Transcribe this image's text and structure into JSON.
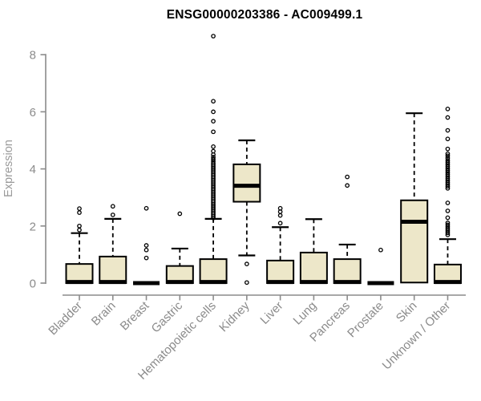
{
  "title": "ENSG00000203386 - AC009499.1",
  "chart_data": {
    "type": "boxplot",
    "title": "ENSG00000203386 - AC009499.1",
    "xlabel": "",
    "ylabel": "Expression",
    "ylim": [
      0,
      8.8
    ],
    "yticks": [
      0,
      2,
      4,
      6,
      8
    ],
    "grid": false,
    "legend": "none",
    "categories": [
      "Bladder",
      "Brain",
      "Breast",
      "Gastric",
      "Hematopoietic cells",
      "Kidney",
      "Liver",
      "Lung",
      "Pancreas",
      "Prostate",
      "Skin",
      "Unknown / Other"
    ],
    "series": [
      {
        "name": "Bladder",
        "whisker_low": 0,
        "q1": 0,
        "median": 0.04,
        "q3": 0.67,
        "whisker_high": 1.75,
        "outliers": [
          1.86,
          2.0,
          2.47,
          2.61
        ]
      },
      {
        "name": "Brain",
        "whisker_low": 0,
        "q1": 0,
        "median": 0.04,
        "q3": 0.93,
        "whisker_high": 2.25,
        "outliers": [
          2.39,
          2.69
        ]
      },
      {
        "name": "Breast",
        "whisker_low": 0,
        "q1": 0,
        "median": 0.02,
        "q3": 0.04,
        "whisker_high": 0.05,
        "outliers": [
          0.88,
          1.16,
          1.32,
          2.62
        ]
      },
      {
        "name": "Gastric",
        "whisker_low": 0,
        "q1": 0,
        "median": 0.04,
        "q3": 0.6,
        "whisker_high": 1.21,
        "outliers": [
          2.43
        ]
      },
      {
        "name": "Hematopoietic cells",
        "whisker_low": 0,
        "q1": 0,
        "median": 0.04,
        "q3": 0.84,
        "whisker_high": 2.25,
        "outliers": [
          2.28,
          2.34,
          2.4,
          2.46,
          2.52,
          2.58,
          2.64,
          2.7,
          2.76,
          2.82,
          2.88,
          2.94,
          3.0,
          3.06,
          3.12,
          3.18,
          3.24,
          3.3,
          3.36,
          3.42,
          3.48,
          3.54,
          3.6,
          3.66,
          3.72,
          3.78,
          3.84,
          3.9,
          3.96,
          4.02,
          4.08,
          4.14,
          4.2,
          4.27,
          4.34,
          4.41,
          4.5,
          4.62,
          4.78,
          5.3,
          5.67,
          6.0,
          6.37,
          8.65
        ]
      },
      {
        "name": "Kidney",
        "whisker_low": 0.97,
        "q1": 2.85,
        "median": 3.41,
        "q3": 4.16,
        "whisker_high": 5.0,
        "outliers": [
          0.67,
          0.02
        ]
      },
      {
        "name": "Liver",
        "whisker_low": 0,
        "q1": 0,
        "median": 0.04,
        "q3": 0.79,
        "whisker_high": 1.96,
        "outliers": [
          2.1,
          2.37,
          2.5,
          2.62
        ]
      },
      {
        "name": "Lung",
        "whisker_low": 0,
        "q1": 0,
        "median": 0.04,
        "q3": 1.07,
        "whisker_high": 2.24,
        "outliers": []
      },
      {
        "name": "Pancreas",
        "whisker_low": 0,
        "q1": 0,
        "median": 0.04,
        "q3": 0.84,
        "whisker_high": 1.35,
        "outliers": [
          3.42,
          3.72
        ]
      },
      {
        "name": "Prostate",
        "whisker_low": 0,
        "q1": 0,
        "median": 0.02,
        "q3": 0.04,
        "whisker_high": 0.05,
        "outliers": [
          1.16
        ]
      },
      {
        "name": "Skin",
        "whisker_low": 0.02,
        "q1": 0.02,
        "median": 2.15,
        "q3": 2.9,
        "whisker_high": 5.95,
        "outliers": []
      },
      {
        "name": "Unknown / Other",
        "whisker_low": 0,
        "q1": 0,
        "median": 0.04,
        "q3": 0.65,
        "whisker_high": 1.54,
        "outliers": [
          1.69,
          1.76,
          1.83,
          1.9,
          1.97,
          2.04,
          2.11,
          2.29,
          2.53,
          2.81,
          3.32,
          3.39,
          3.46,
          3.53,
          3.6,
          3.67,
          3.74,
          3.81,
          3.88,
          3.95,
          4.02,
          4.09,
          4.16,
          4.23,
          4.3,
          4.38,
          4.46,
          4.53,
          4.7,
          5.05,
          5.35,
          5.8,
          6.1
        ]
      }
    ],
    "colors": {
      "box_fill": "#EDE7C9",
      "box_border": "#000000",
      "median": "#000000",
      "whisker": "#000000",
      "outlier": "#000000",
      "axis": "#8b8b8b",
      "title": "#000000"
    }
  }
}
